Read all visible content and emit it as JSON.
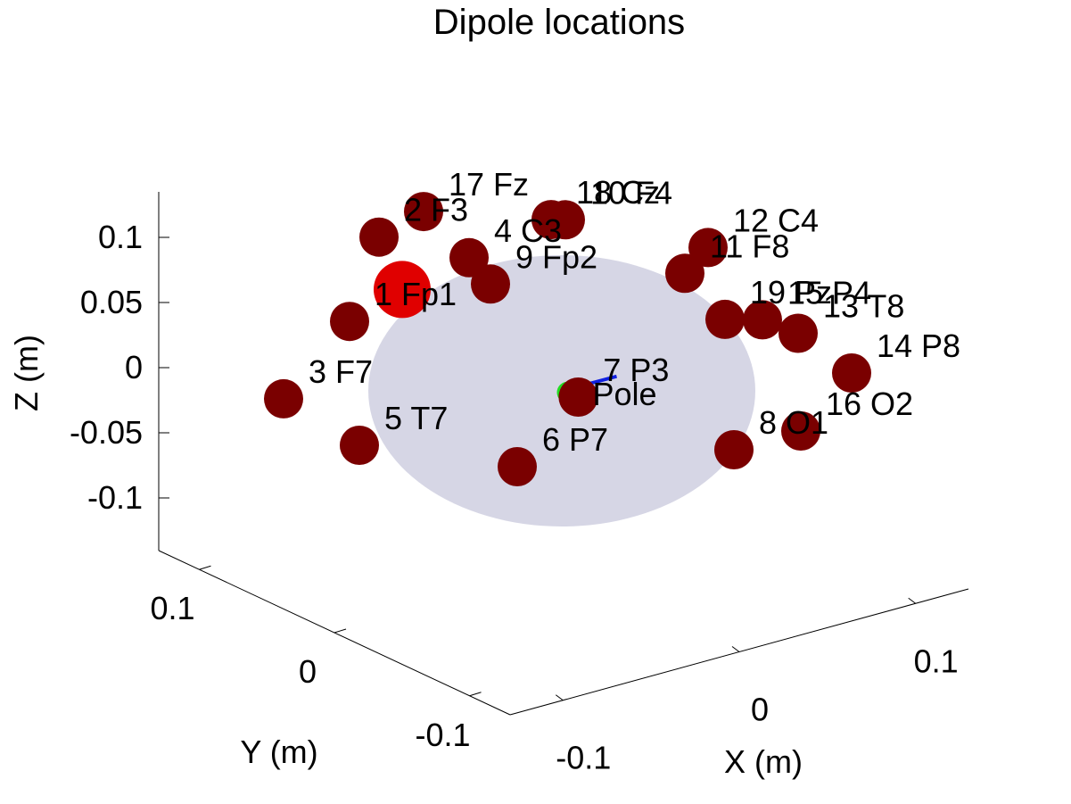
{
  "chart_data": {
    "type": "scatter",
    "title": "Dipole locations",
    "xlabel": "X (m)",
    "ylabel": "Y (m)",
    "zlabel": "Z (m)",
    "xlim": [
      -0.13,
      0.13
    ],
    "ylim": [
      -0.13,
      0.13
    ],
    "zlim": [
      -0.13,
      0.13
    ],
    "x_ticks": [
      {
        "value": -0.1,
        "label": "-0.1"
      },
      {
        "value": 0,
        "label": "0"
      },
      {
        "value": 0.1,
        "label": "0.1"
      }
    ],
    "y_ticks": [
      {
        "value": -0.1,
        "label": "-0.1"
      },
      {
        "value": 0,
        "label": "0"
      },
      {
        "value": 0.1,
        "label": "0.1"
      }
    ],
    "z_ticks": [
      {
        "value": -0.1,
        "label": "-0.1"
      },
      {
        "value": -0.05,
        "label": "-0.05"
      },
      {
        "value": 0,
        "label": "0"
      },
      {
        "value": 0.05,
        "label": "0.05"
      },
      {
        "value": 0.1,
        "label": "0.1"
      }
    ],
    "grid": false,
    "head_surface": {
      "shape": "sphere",
      "color": "#c8c8dc",
      "opacity": 0.75
    },
    "colors": {
      "electrode": "#7a0000",
      "dipole": "#e00000",
      "pole": "#22dd22",
      "pole_axis": "#1020e0"
    },
    "dipole": {
      "x": -0.03,
      "y": 0.06,
      "z": 0.06
    },
    "pole": {
      "label": "Pole",
      "x": 0.0,
      "y": -0.005,
      "z": 0.0
    },
    "electrodes": [
      {
        "label": "1 Fp1",
        "x": -0.04,
        "y": 0.08,
        "z": 0.03
      },
      {
        "label": "2 F3",
        "x": -0.02,
        "y": 0.09,
        "z": 0.08
      },
      {
        "label": "3 F7",
        "x": -0.09,
        "y": 0.05,
        "z": 0.01
      },
      {
        "label": "4 C3",
        "x": 0.0,
        "y": 0.06,
        "z": 0.07
      },
      {
        "label": "5 T7",
        "x": -0.09,
        "y": 0.0,
        "z": 0.0
      },
      {
        "label": "6 P7",
        "x": -0.06,
        "y": -0.06,
        "z": 0.0
      },
      {
        "label": "7 P3",
        "x": 0.0,
        "y": -0.012,
        "z": 0.0
      },
      {
        "label": "8 O1",
        "x": 0.01,
        "y": -0.1,
        "z": 0.0
      },
      {
        "label": "9 Fp2",
        "x": 0.03,
        "y": 0.09,
        "z": 0.02
      },
      {
        "label": "10 F4",
        "x": 0.05,
        "y": 0.07,
        "z": 0.07
      },
      {
        "label": "11 F8",
        "x": 0.09,
        "y": 0.05,
        "z": 0.02
      },
      {
        "label": "12 C4",
        "x": 0.08,
        "y": 0.02,
        "z": 0.06
      },
      {
        "label": "13 T8",
        "x": 0.1,
        "y": -0.01,
        "z": 0.0
      },
      {
        "label": "14 P8",
        "x": 0.09,
        "y": -0.06,
        "z": 0.0
      },
      {
        "label": "15 P4",
        "x": 0.05,
        "y": -0.06,
        "z": 0.06
      },
      {
        "label": "16 O2",
        "x": 0.04,
        "y": -0.1,
        "z": 0.0
      },
      {
        "label": "17 Fz",
        "x": 0.0,
        "y": 0.09,
        "z": 0.09
      },
      {
        "label": "18 Cz",
        "x": 0.03,
        "y": 0.05,
        "z": 0.09
      },
      {
        "label": "19 Pz",
        "x": 0.04,
        "y": -0.05,
        "z": 0.06
      }
    ]
  }
}
